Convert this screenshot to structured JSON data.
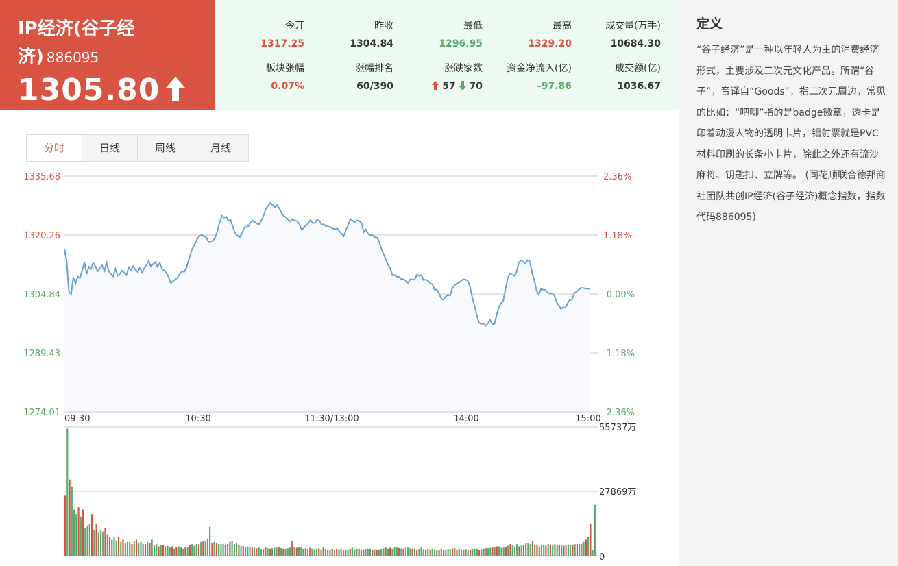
{
  "header": {
    "name": "IP经济(谷子经济)",
    "code": "886095",
    "price": "1305.80"
  },
  "stats": [
    {
      "label": "今开",
      "value": "1317.25",
      "color": "red"
    },
    {
      "label": "昨收",
      "value": "1304.84",
      "color": "dark"
    },
    {
      "label": "最低",
      "value": "1296.95",
      "color": "green"
    },
    {
      "label": "最高",
      "value": "1329.20",
      "color": "red"
    },
    {
      "label": "成交量(万手)",
      "value": "10684.30",
      "color": "dark"
    },
    {
      "label": "板块张幅",
      "value": "0.07%",
      "color": "red"
    },
    {
      "label": "涨幅排名",
      "value": "60/390",
      "color": "dark"
    },
    {
      "label": "涨跌家数",
      "up": "57",
      "down": "70",
      "color": "dark"
    },
    {
      "label": "资金净流入(亿)",
      "value": "-97.86",
      "color": "green"
    },
    {
      "label": "成交额(亿)",
      "value": "1036.67",
      "color": "dark"
    }
  ],
  "tabs": [
    "分时",
    "日线",
    "周线",
    "月线"
  ],
  "definition": {
    "title": "定义",
    "text": "“谷子经济”是一种以年轻人为主的消费经济形式，主要涉及二次元文化产品。所谓“谷子”，音译自“Goods”，指二次元周边，常见的比如：“吧唧”指的是badge徽章，透卡是印着动漫人物的透明卡片，镭射票就是PVC材料印刷的长条小卡片，除此之外还有流沙麻将、钥匙扣、立牌等。 (同花顺联合德邦商社团队共创IP经济(谷子经济)概念指数，指数代码886095)"
  },
  "colors": {
    "red": "#d95342",
    "green": "#5aa86d",
    "line": "#6b9fcf"
  },
  "chart_data": [
    {
      "type": "line",
      "title": "",
      "x_ticks": [
        "09:30",
        "10:30",
        "11:30/13:00",
        "14:00",
        "15:00"
      ],
      "y_ticks_left": [
        "1335.68",
        "1320.26",
        "1304.84",
        "1289.43",
        "1274.01"
      ],
      "y_ticks_right": [
        "2.36%",
        "1.18%",
        "-0.00%",
        "-1.18%",
        "-2.36%"
      ],
      "ylim": [
        1274.01,
        1335.68
      ],
      "base": 1304.84,
      "series": [
        {
          "values": [
            1316.5,
            1313.5,
            1305.5,
            1304.8,
            1309.2,
            1307.6,
            1309.4,
            1309.0,
            1311.0,
            1313.2,
            1310.0,
            1312.0,
            1311.4,
            1313.0,
            1312.0,
            1310.8,
            1311.6,
            1312.3,
            1310.9,
            1313.0,
            1310.8,
            1310.0,
            1309.4,
            1311.4,
            1309.6,
            1310.1,
            1311.0,
            1310.4,
            1309.8,
            1311.8,
            1311.0,
            1312.1,
            1311.2,
            1310.6,
            1311.7,
            1310.4,
            1311.6,
            1312.4,
            1313.5,
            1312.0,
            1312.7,
            1313.2,
            1312.0,
            1313.0,
            1311.4,
            1311.0,
            1310.3,
            1309.2,
            1307.7,
            1308.2,
            1308.6,
            1309.2,
            1310.0,
            1310.8,
            1310.6,
            1311.6,
            1313.6,
            1315.6,
            1317.0,
            1318.1,
            1319.4,
            1320.0,
            1320.3,
            1320.0,
            1319.6,
            1318.5,
            1318.6,
            1318.8,
            1319.6,
            1321.3,
            1323.5,
            1325.3,
            1324.8,
            1325.1,
            1324.0,
            1324.2,
            1322.4,
            1320.8,
            1320.1,
            1319.6,
            1320.6,
            1322.0,
            1322.4,
            1322.6,
            1323.6,
            1324.1,
            1323.6,
            1323.2,
            1323.1,
            1324.3,
            1325.6,
            1327.3,
            1328.0,
            1328.7,
            1328.0,
            1327.5,
            1328.1,
            1327.2,
            1326.0,
            1325.2,
            1324.9,
            1324.2,
            1323.8,
            1324.5,
            1324.0,
            1323.9,
            1323.2,
            1321.6,
            1322.1,
            1322.9,
            1323.3,
            1324.2,
            1323.4,
            1323.4,
            1324.3,
            1324.0,
            1323.0,
            1323.1,
            1322.6,
            1322.5,
            1322.3,
            1322.0,
            1321.7,
            1322.0,
            1321.3,
            1320.6,
            1320.0,
            1321.6,
            1322.8,
            1324.5,
            1324.0,
            1323.7,
            1324.1,
            1324.0,
            1323.4,
            1321.0,
            1321.7,
            1320.6,
            1320.2,
            1320.2,
            1319.7,
            1319.6,
            1318.6,
            1316.6,
            1315.3,
            1313.9,
            1312.5,
            1311.6,
            1309.7,
            1309.8,
            1309.3,
            1309.3,
            1308.7,
            1308.7,
            1308.3,
            1307.7,
            1308.7,
            1308.6,
            1308.6,
            1309.9,
            1309.6,
            1309.8,
            1308.5,
            1308.6,
            1308.3,
            1307.7,
            1307.4,
            1306.0,
            1306.0,
            1305.0,
            1303.6,
            1303.3,
            1304.2,
            1304.6,
            1304.4,
            1306.4,
            1307.0,
            1307.6,
            1307.8,
            1308.3,
            1308.7,
            1308.6,
            1308.3,
            1306.7,
            1304.0,
            1301.8,
            1299.4,
            1297.4,
            1297.0,
            1297.1,
            1296.5,
            1297.1,
            1298.1,
            1297.0,
            1297.0,
            1299.4,
            1301.3,
            1302.4,
            1303.1,
            1306.1,
            1309.0,
            1310.2,
            1309.9,
            1309.6,
            1310.6,
            1313.1,
            1313.6,
            1313.3,
            1312.8,
            1313.7,
            1313.4,
            1310.4,
            1308.4,
            1305.8,
            1304.7,
            1306.1,
            1306.0,
            1305.9,
            1305.2,
            1304.9,
            1305.0,
            1304.5,
            1302.8,
            1301.9,
            1300.9,
            1301.4,
            1301.2,
            1302.4,
            1303.3,
            1303.4,
            1305.0,
            1305.5,
            1305.9,
            1306.4,
            1306.4,
            1306.3,
            1306.2,
            1306.2
          ]
        }
      ]
    },
    {
      "type": "bar",
      "title": "",
      "y_ticks": [
        "55737万",
        "27869万",
        "0"
      ],
      "ylim": [
        0,
        55737
      ],
      "volume_pattern": "high open (~55000万) decaying to ~4000万 baseline, small spike near 10:30, sharp rise near close",
      "series": [
        {
          "colors_key": [
            "red",
            "green"
          ],
          "values": [
            26000,
            55000,
            33000,
            30000,
            20000,
            18000,
            21000,
            17000,
            20000,
            12000,
            13000,
            14000,
            18000,
            11000,
            14000,
            10000,
            11000,
            10500,
            12000,
            9000,
            8000,
            7000,
            8000,
            6500,
            8000,
            6000,
            7000,
            5500,
            6000,
            6000,
            5000,
            6500,
            7000,
            5500,
            6000,
            5000,
            5000,
            6000,
            5500,
            7000,
            4500,
            5000,
            4000,
            4500,
            4500,
            4000,
            4200,
            3500,
            4000,
            3000,
            3500,
            4000,
            3500,
            3000,
            3500,
            3800,
            4500,
            5000,
            4200,
            5000,
            5000,
            6000,
            6500,
            6500,
            7500,
            12500,
            5500,
            6000,
            5500,
            5000,
            5000,
            5000,
            4600,
            5000,
            6000,
            6500,
            5000,
            5500,
            4500,
            4000,
            4200,
            3800,
            4000,
            3600,
            3500,
            3500,
            3200,
            3500,
            3000,
            3000,
            3500,
            3300,
            3000,
            3200,
            3500,
            3500,
            3800,
            3300,
            3000,
            3000,
            3200,
            3500,
            6500,
            3800,
            3400,
            3600,
            3500,
            3000,
            3200,
            3000,
            3400,
            3000,
            2800,
            3000,
            3100,
            2800,
            3500,
            3000,
            2600,
            2700,
            3000,
            2500,
            3000,
            2800,
            3000,
            2500,
            2700,
            2700,
            3000,
            3500,
            2800,
            3000,
            3000,
            2800,
            2800,
            3000,
            3000,
            3000,
            2600,
            2800,
            2600,
            2700,
            3000,
            3200,
            3500,
            3000,
            3400,
            3000,
            3600,
            3500,
            3300,
            3100,
            3000,
            3500,
            3500,
            3200,
            3000,
            3100,
            2500,
            3000,
            3500,
            2800,
            2700,
            3000,
            2600,
            3000,
            2800,
            2500,
            2500,
            3000,
            2600,
            2400,
            3000,
            2900,
            3100,
            3300,
            2700,
            3000,
            2800,
            2500,
            2900,
            2700,
            2700,
            3000,
            3000,
            3000,
            2500,
            2800,
            3000,
            3300,
            3200,
            3400,
            3500,
            3800,
            4000,
            4000,
            3400,
            3500,
            3800,
            4300,
            5000,
            4500,
            4000,
            5000,
            4000,
            4300,
            4500,
            5500,
            5500,
            5000,
            6500,
            4500,
            4800,
            4000,
            4500,
            4500,
            4200,
            5000,
            4600,
            4800,
            5000,
            4500,
            4400,
            4500,
            4200,
            4600,
            4800,
            4500,
            4800,
            5000,
            5000,
            5000,
            5200,
            6000,
            7000,
            8000,
            14000,
            2500,
            22000
          ]
        }
      ]
    }
  ]
}
